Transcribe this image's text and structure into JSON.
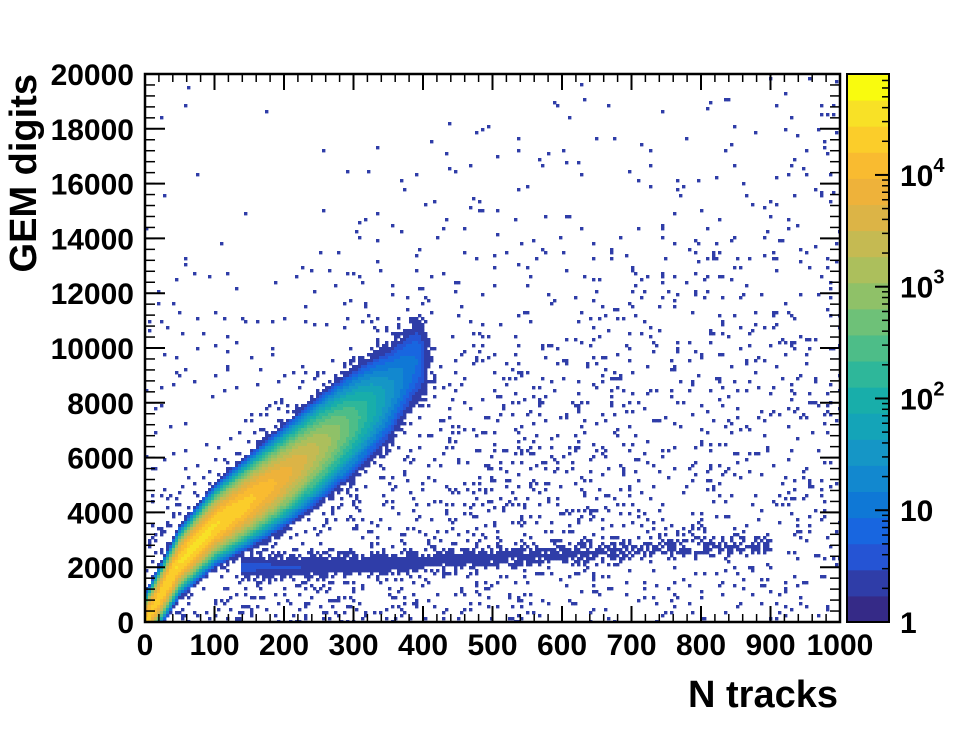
{
  "chart_data": {
    "type": "heatmap",
    "title": "",
    "xlabel": "N tracks",
    "ylabel": "GEM digits",
    "xlim": [
      0,
      1000
    ],
    "ylim": [
      0,
      20000
    ],
    "x_ticks": [
      "0",
      "100",
      "200",
      "300",
      "400",
      "500",
      "600",
      "700",
      "800",
      "900",
      "1000"
    ],
    "y_ticks": [
      "0",
      "2000",
      "4000",
      "6000",
      "8000",
      "10000",
      "12000",
      "14000",
      "16000",
      "18000",
      "20000"
    ],
    "colorbar": {
      "scale": "log",
      "range": [
        1,
        80000
      ],
      "tick_labels": [
        {
          "value": 1,
          "base": "1",
          "exponent": ""
        },
        {
          "value": 10,
          "base": "10",
          "exponent": ""
        },
        {
          "value": 100,
          "base": "10",
          "exponent": "2"
        },
        {
          "value": 1000,
          "base": "10",
          "exponent": "3"
        },
        {
          "value": 10000,
          "base": "10",
          "exponent": "4"
        }
      ],
      "colors": [
        "#352a87",
        "#2f3da8",
        "#2554d4",
        "#1866e0",
        "#0f78d6",
        "#1288cf",
        "#1596c6",
        "#14a4b8",
        "#18aeaa",
        "#2eb79a",
        "#4dbd88",
        "#6ec178",
        "#8fc168",
        "#acbf5c",
        "#c5ba52",
        "#dcb446",
        "#eeb23a",
        "#f9bb30",
        "#fbcd2a",
        "#f8e126",
        "#f9fb0e"
      ]
    },
    "regions": [
      {
        "kind": "main_band",
        "x_range": [
          0,
          390
        ],
        "y_range": [
          0,
          11000
        ],
        "peak_count": 30000,
        "ridge": [
          [
            0,
            0
          ],
          [
            50,
            2200
          ],
          [
            100,
            3500
          ],
          [
            150,
            4400
          ],
          [
            200,
            5300
          ],
          [
            250,
            6300
          ],
          [
            300,
            7300
          ],
          [
            350,
            8300
          ],
          [
            390,
            9500
          ]
        ]
      },
      {
        "kind": "low_branch",
        "x_range": [
          180,
          900
        ],
        "y_range": [
          1800,
          3000
        ],
        "peak_count": 3,
        "ridge": [
          [
            200,
            2000
          ],
          [
            400,
            2200
          ],
          [
            600,
            2500
          ],
          [
            800,
            2700
          ],
          [
            900,
            2750
          ]
        ]
      },
      {
        "kind": "sparse_halo",
        "x_range": [
          0,
          1000
        ],
        "y_range": [
          0,
          18000
        ],
        "peak_count": 1
      }
    ]
  }
}
